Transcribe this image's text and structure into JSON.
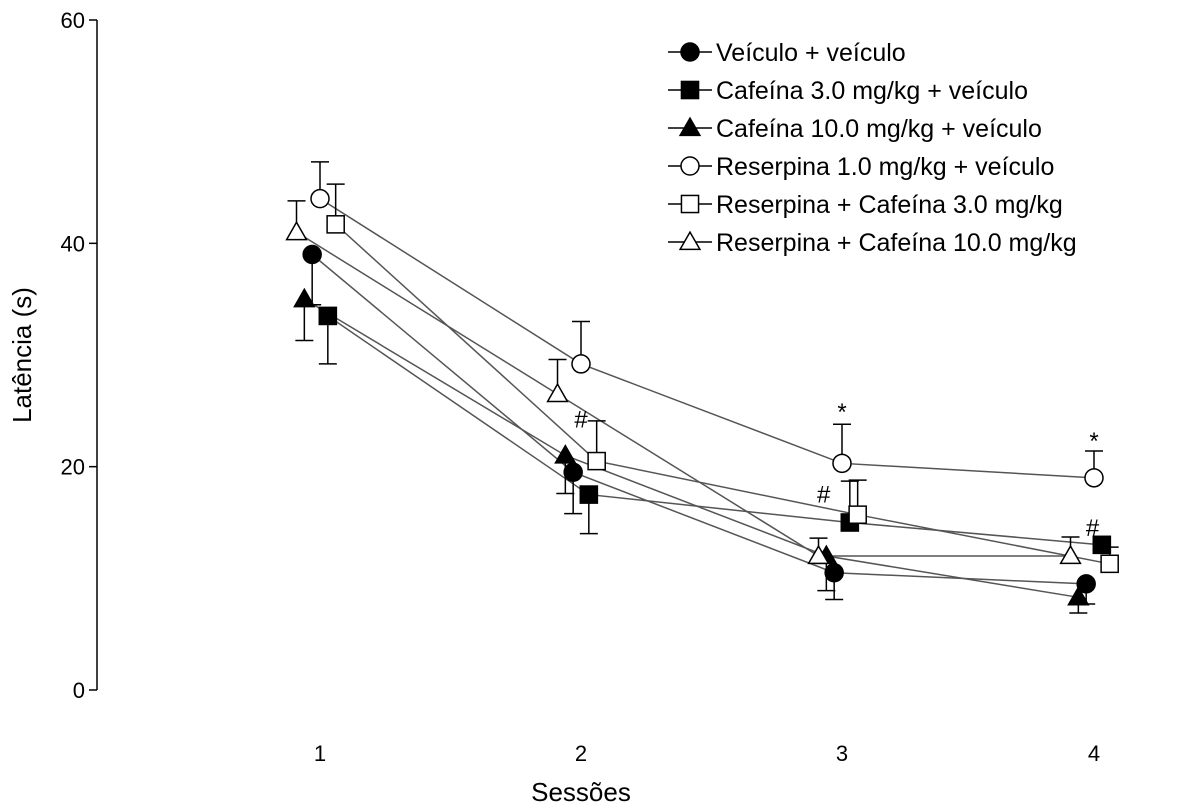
{
  "chart_data": {
    "type": "line",
    "title": "",
    "xlabel": "Sessões",
    "ylabel": "Latência (s)",
    "ylim": [
      0,
      60
    ],
    "yticks": [
      0,
      20,
      40,
      60
    ],
    "categories": [
      "1",
      "2",
      "3",
      "4"
    ],
    "legend_position": "top-right",
    "grid": false,
    "series": [
      {
        "name": "Veículo + veículo",
        "marker": "circle",
        "filled": true,
        "x_offset": -0.03,
        "values": [
          39,
          19.5,
          10.5,
          9.5
        ],
        "errors": [
          4.5,
          3.7,
          2.4,
          1.8
        ],
        "error_dir": [
          -1,
          -1,
          -1,
          -1
        ]
      },
      {
        "name": "Cafeína 3.0 mg/kg + veículo",
        "marker": "square",
        "filled": true,
        "x_offset": 0.03,
        "values": [
          33.5,
          17.5,
          15,
          13
        ],
        "errors": [
          4.3,
          3.5,
          3.7,
          0
        ],
        "error_dir": [
          -1,
          -1,
          1,
          1
        ]
      },
      {
        "name": "Cafeína 10.0 mg/kg + veículo",
        "marker": "triangle",
        "filled": true,
        "x_offset": -0.06,
        "values": [
          35,
          21,
          12,
          8.3
        ],
        "errors": [
          3.7,
          3.4,
          3.1,
          1.4
        ],
        "error_dir": [
          -1,
          -1,
          -1,
          -1
        ]
      },
      {
        "name": "Reserpina 1.0 mg/kg + veículo",
        "marker": "circle",
        "filled": false,
        "x_offset": 0.0,
        "values": [
          44,
          29.2,
          20.3,
          19
        ],
        "errors": [
          3.3,
          3.8,
          3.5,
          2.4
        ],
        "error_dir": [
          1,
          1,
          1,
          1
        ]
      },
      {
        "name": "Reserpina + Cafeína 3.0 mg/kg",
        "marker": "square",
        "filled": false,
        "x_offset": 0.06,
        "values": [
          41.7,
          20.5,
          15.7,
          11.3
        ],
        "errors": [
          3.6,
          3.6,
          3.1,
          1.5
        ],
        "error_dir": [
          1,
          1,
          1,
          1
        ]
      },
      {
        "name": "Reserpina + Cafeína 10.0 mg/kg",
        "marker": "triangle",
        "filled": false,
        "x_offset": -0.09,
        "values": [
          41,
          26.5,
          12,
          12
        ],
        "errors": [
          2.8,
          3.1,
          1.6,
          1.7
        ],
        "error_dir": [
          1,
          1,
          1,
          1
        ]
      }
    ],
    "annotations": [
      {
        "text": "#",
        "x": 2,
        "y": 23.5
      },
      {
        "text": "*",
        "x": 3,
        "y": 24.2
      },
      {
        "text": "#",
        "x": 2.93,
        "y": 16.8
      },
      {
        "text": "*",
        "x": 4,
        "y": 21.6
      },
      {
        "text": "#",
        "x": 3.96,
        "y": 13.8
      }
    ]
  }
}
